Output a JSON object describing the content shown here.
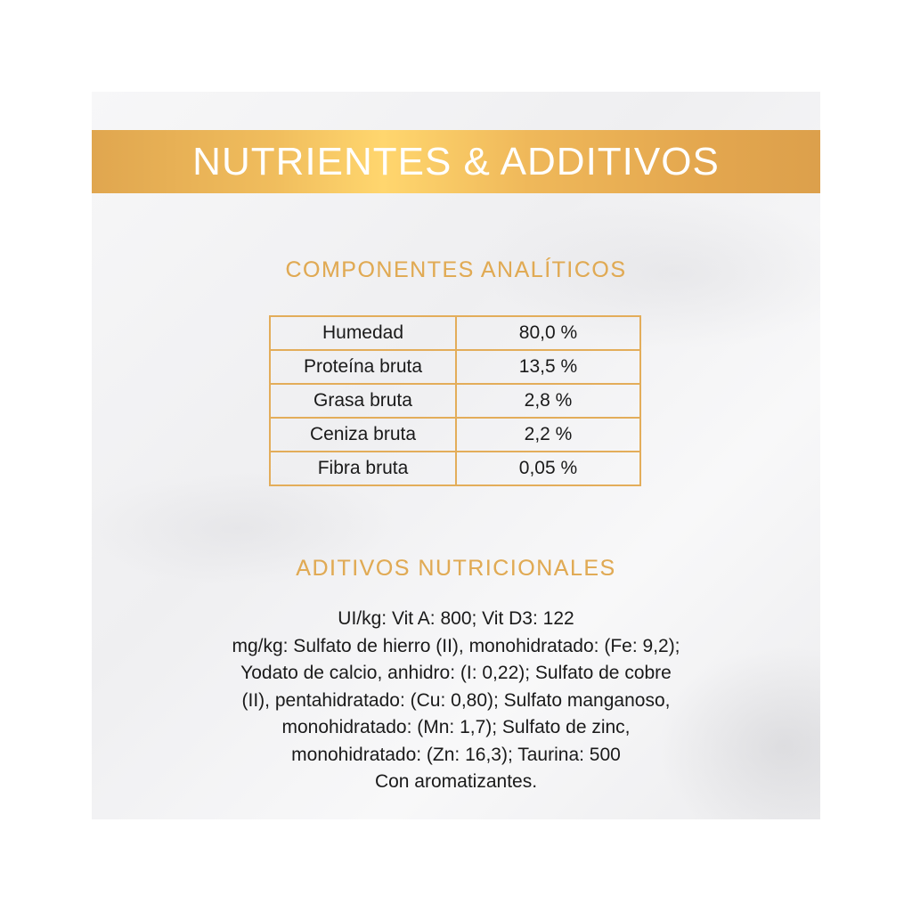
{
  "banner": {
    "title": "NUTRIENTES & ADDITIVOS"
  },
  "analytical": {
    "title": "COMPONENTES ANALÍTICOS",
    "rows": [
      {
        "name": "Humedad",
        "value": "80,0 %"
      },
      {
        "name": "Proteína bruta",
        "value": "13,5 %"
      },
      {
        "name": "Grasa bruta",
        "value": "2,8 %"
      },
      {
        "name": "Ceniza bruta",
        "value": "2,2 %"
      },
      {
        "name": "Fibra bruta",
        "value": "0,05 %"
      }
    ]
  },
  "additives": {
    "title": "ADITIVOS NUTRICIONALES",
    "lines": [
      "UI/kg: Vit A: 800; Vit D3: 122",
      "mg/kg: Sulfato de hierro (II), monohidratado: (Fe: 9,2);",
      "Yodato de calcio, anhidro: (I: 0,22); Sulfato de cobre",
      "(II), pentahidratado: (Cu: 0,80); Sulfato manganoso,",
      "monohidratado: (Mn: 1,7); Sulfato de zinc,",
      "monohidratado: (Zn: 16,3); Taurina: 500",
      "Con aromatizantes."
    ]
  },
  "colors": {
    "gold": "#e3ad5a",
    "text": "#1a1a1a"
  }
}
